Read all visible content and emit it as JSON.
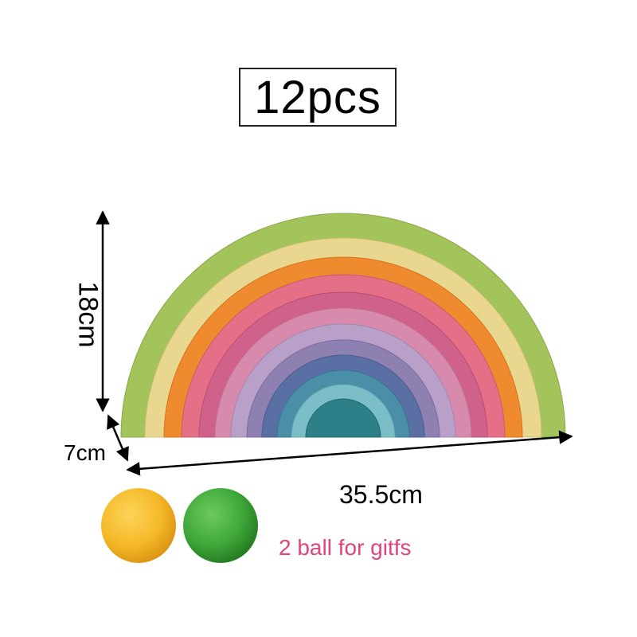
{
  "title": "12pcs",
  "dimensions": {
    "height": "18cm",
    "depth": "7cm",
    "width": "35.5cm"
  },
  "balls_caption": "2 ball for gitfs",
  "colors": {
    "caption": "#e0457a",
    "arches": [
      "#a3c45a",
      "#ead78f",
      "#ef8b2e",
      "#e56f86",
      "#d0618a",
      "#d78aac",
      "#b8a0c8",
      "#8f80b2",
      "#5a6fa3",
      "#4a8ea8",
      "#7bbec8",
      "#2d8088"
    ],
    "ball_yellow": "#f5b928",
    "ball_green": "#3fa63a"
  },
  "icons": {
    "height_arrow": "double-arrow-vertical-icon",
    "depth_arrow": "double-arrow-diagonal-icon",
    "width_arrow": "double-arrow-horizontal-icon"
  }
}
